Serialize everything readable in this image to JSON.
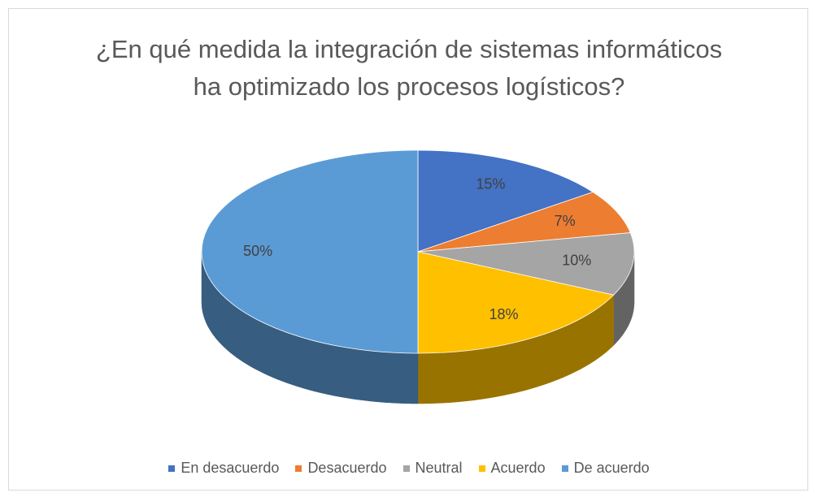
{
  "chart_data": {
    "type": "pie3d",
    "title": "¿En qué medida la integración de sistemas informáticos ha optimizado los procesos logísticos?",
    "categories": [
      "En desacuerdo",
      "Desacuerdo",
      "Neutral",
      "Acuerdo",
      "De acuerdo"
    ],
    "values": [
      15,
      7,
      10,
      18,
      50
    ],
    "value_labels": [
      "15%",
      "7%",
      "10%",
      "18%",
      "50%"
    ],
    "colors": [
      "#4472c4",
      "#ed7d31",
      "#a5a5a5",
      "#ffc000",
      "#5b9bd5"
    ],
    "legend": "bottom"
  }
}
